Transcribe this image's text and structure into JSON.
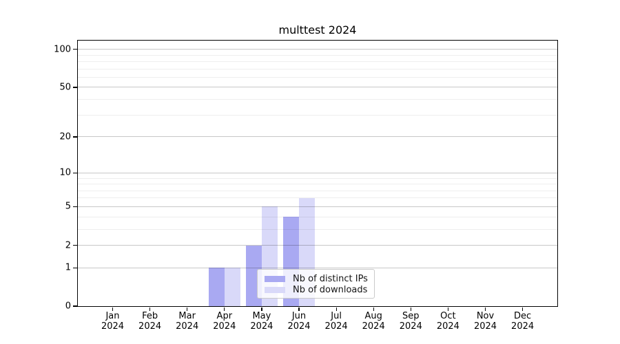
{
  "chart_data": {
    "type": "bar",
    "title": "multtest 2024",
    "categories": [
      "Jan",
      "Feb",
      "Mar",
      "Apr",
      "May",
      "Jun",
      "Jul",
      "Aug",
      "Sep",
      "Oct",
      "Nov",
      "Dec"
    ],
    "category_year": "2024",
    "series": [
      {
        "name": "Nb of distinct IPs",
        "color": "#a9a9f2",
        "values": [
          0,
          0,
          0,
          1,
          2,
          4,
          0,
          0,
          0,
          0,
          0,
          0
        ]
      },
      {
        "name": "Nb of downloads",
        "color": "#d9d9f9",
        "values": [
          0,
          0,
          0,
          1,
          5,
          6,
          0,
          0,
          0,
          0,
          0,
          0
        ]
      }
    ],
    "xlabel": "",
    "ylabel": "",
    "yscale": "log1p",
    "ylim": [
      0,
      117
    ],
    "y_major_ticks": [
      0,
      1,
      2,
      5,
      10,
      20,
      50,
      100
    ],
    "y_minor_gridlines": [
      3,
      4,
      6,
      7,
      8,
      9,
      30,
      40,
      60,
      70,
      80,
      90
    ],
    "grid": true,
    "legend_position": "lower center",
    "background_color": "#ffffff",
    "frame_color": "#000000"
  }
}
